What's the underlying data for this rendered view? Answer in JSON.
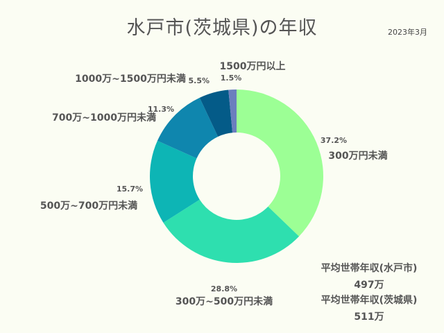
{
  "title": "水戸市(茨城県)の年収",
  "date_note": "2023年3月",
  "chart_data": {
    "type": "pie",
    "variant": "donut",
    "categories": [
      "300万円未満",
      "300万~500万円未満",
      "500万~700万円未満",
      "700万~1000万円未満",
      "1000万~1500万円未満",
      "1500万円以上"
    ],
    "values": [
      37.2,
      28.8,
      15.7,
      11.3,
      5.5,
      1.5
    ],
    "value_labels": [
      "37.2%",
      "28.8%",
      "15.7%",
      "11.3%",
      "5.5%",
      "1.5%"
    ],
    "colors": [
      "#9cff95",
      "#2edfaf",
      "#0db5b5",
      "#0f86ae",
      "#045b88",
      "#6b7fbe"
    ],
    "start": "top",
    "direction": "clockwise"
  },
  "averages": [
    {
      "label": "平均世帯年収(水戸市)",
      "value": "497万"
    },
    {
      "label": "平均世帯年収(茨城県)",
      "value": "511万"
    }
  ]
}
